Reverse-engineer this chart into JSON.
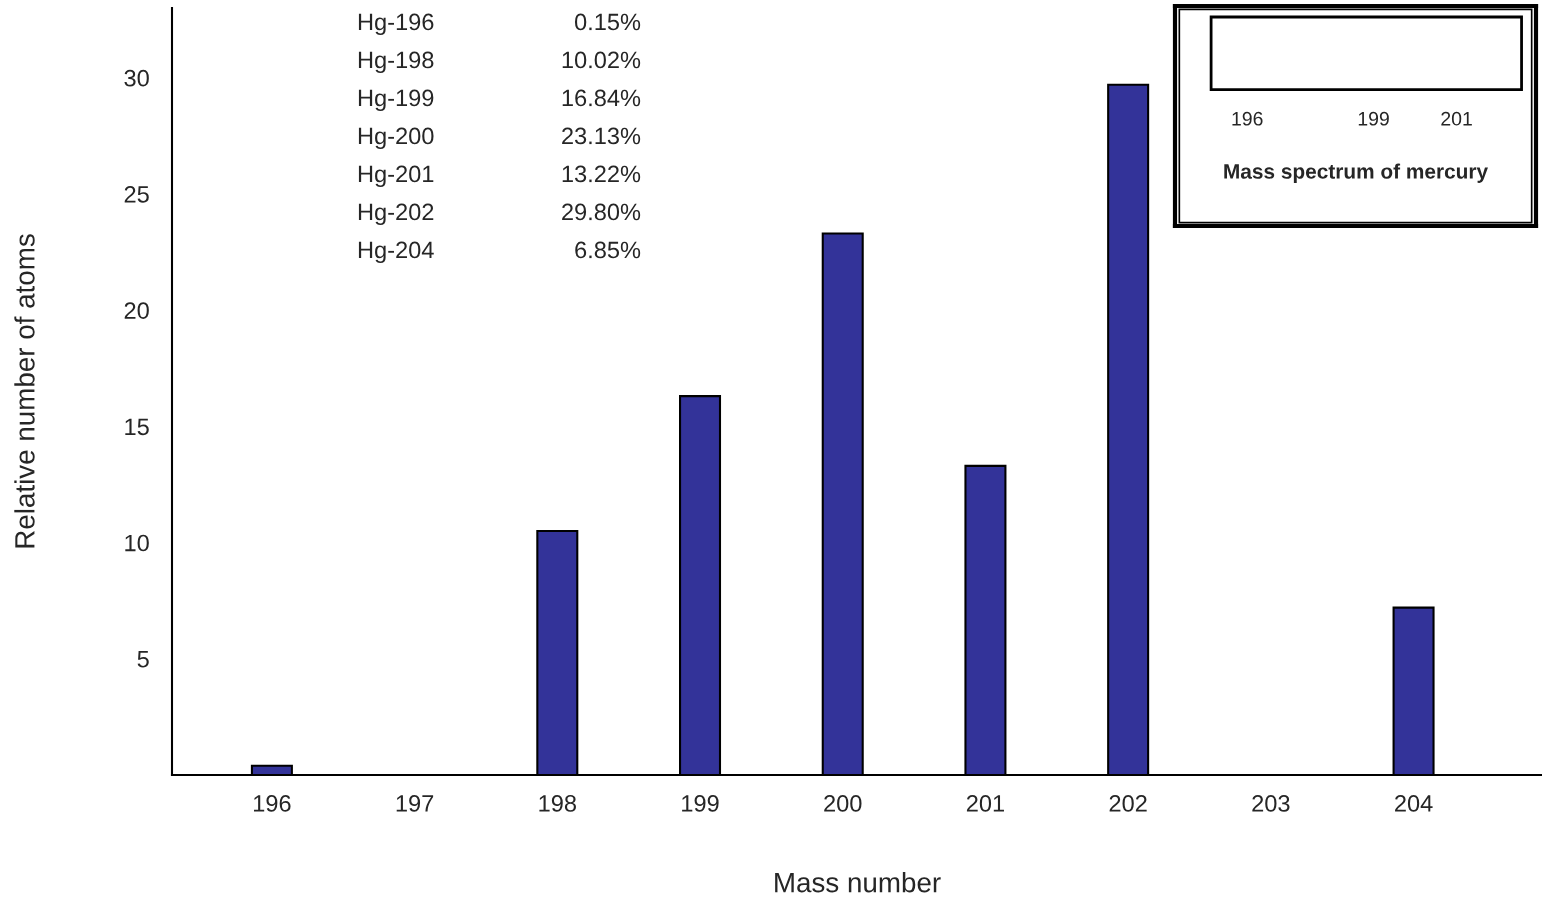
{
  "chart_data": [
    {
      "type": "bar",
      "xlabel": "Mass number",
      "ylabel": "Relative number of atoms",
      "categories": [
        "196",
        "197",
        "198",
        "199",
        "200",
        "201",
        "202",
        "203",
        "204"
      ],
      "values": [
        0.4,
        null,
        10.5,
        16.3,
        23.3,
        13.3,
        29.7,
        null,
        7.2
      ],
      "color": "#333399",
      "ylim": [
        0,
        33
      ],
      "yticks": [
        5,
        10,
        15,
        20,
        25,
        30
      ],
      "grid": false,
      "legend": false,
      "annotations": [
        "Hg-196 0.15%",
        "Hg-198 10.02%",
        "Hg-199 16.84%",
        "Hg-200 23.13%",
        "Hg-201 13.22%",
        "Hg-202 29.80%",
        "Hg-204 6.85%"
      ]
    },
    {
      "type": "other",
      "title": "Mass spectrum of mercury",
      "annotations": [
        "196",
        "199",
        "201"
      ]
    }
  ]
}
